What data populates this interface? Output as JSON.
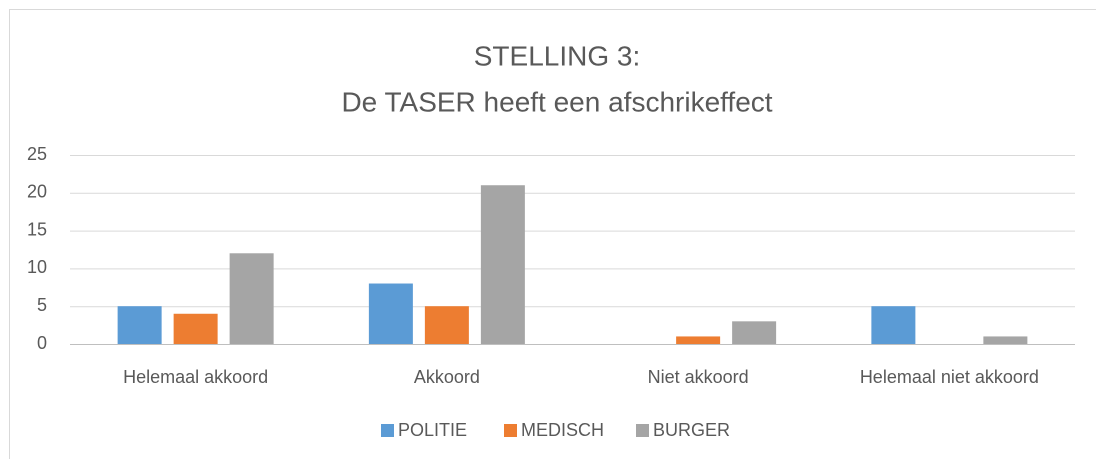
{
  "chart_data": {
    "type": "bar",
    "title": [
      "STELLING 3:",
      "De TASER heeft een afschrikeffect"
    ],
    "categories": [
      "Helemaal akkoord",
      "Akkoord",
      "Niet akkoord",
      "Helemaal niet akkoord"
    ],
    "series": [
      {
        "name": "POLITIE",
        "color": "#5b9bd5",
        "values": [
          5,
          8,
          0,
          5
        ]
      },
      {
        "name": "MEDISCH",
        "color": "#ed7d31",
        "values": [
          4,
          5,
          1,
          0
        ]
      },
      {
        "name": "BURGER",
        "color": "#a5a5a5",
        "values": [
          12,
          21,
          3,
          1
        ]
      }
    ],
    "ylim": [
      0,
      25
    ],
    "yticks": [
      0,
      5,
      10,
      15,
      20,
      25
    ],
    "grid": true,
    "legend": "bottom"
  }
}
